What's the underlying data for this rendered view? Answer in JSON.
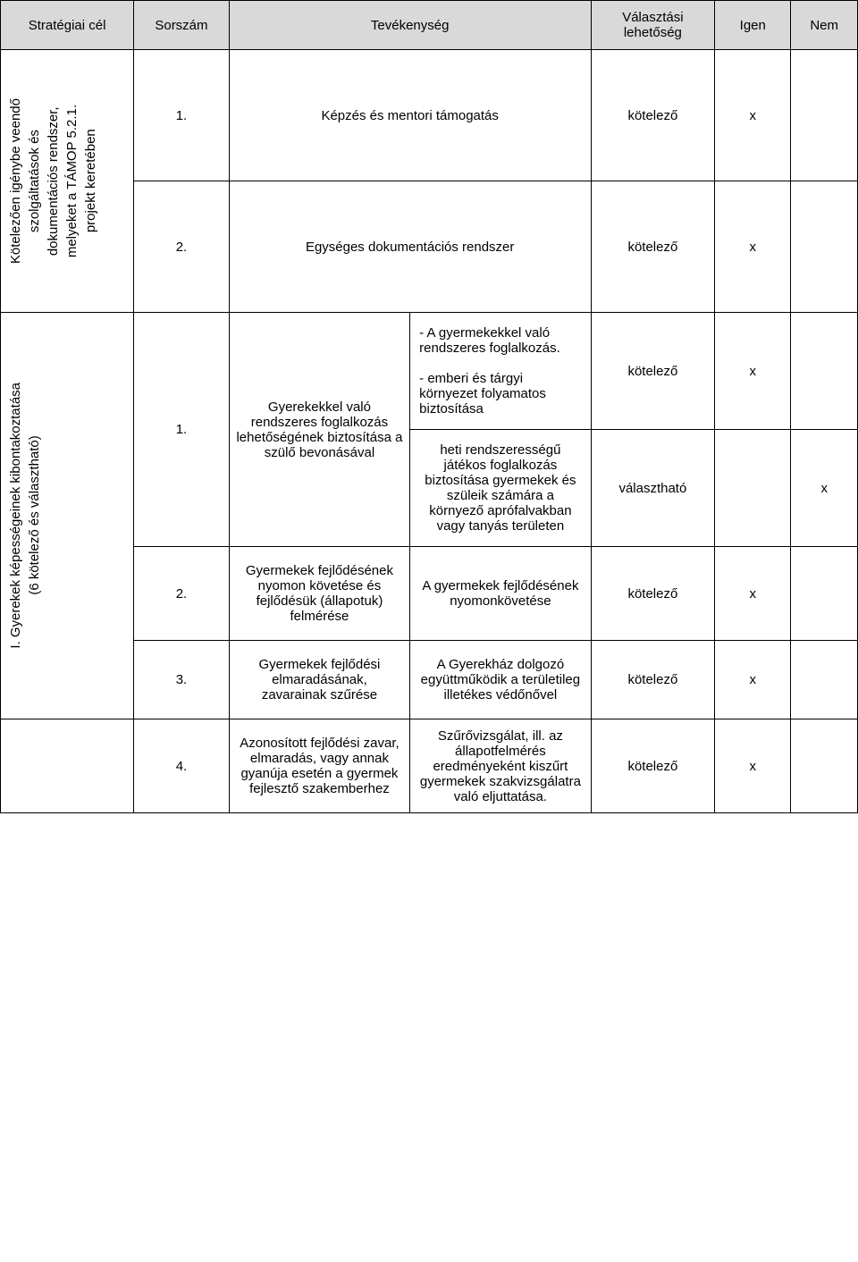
{
  "headers": {
    "h1": "Stratégiai cél",
    "h2": "Sorszám",
    "h3": "Tevékenység",
    "h4": "Választási lehetőség",
    "h5": "Igen",
    "h6": "Nem"
  },
  "options": {
    "mandatory": "kötelező",
    "optional": "választható",
    "x": "x"
  },
  "section1": {
    "goal": "Kötelezően igénybe veendő\nszolgáltatások és\ndokumentációs rendszer,\nmelyeket a TÁMOP 5.2.1.\nprojekt keretében",
    "r1_num": "1.",
    "r1_act": "Képzés és mentori támogatás",
    "r2_num": "2.",
    "r2_act": "Egységes dokumentációs rendszer"
  },
  "section2": {
    "goal": "I. Gyerekek képességeinek kibontakoztatása\n(6 kötelező és választható)",
    "r1_num": "1.",
    "r1_act_a": "Gyerekekkel való rendszeres foglalkozás lehetőségének biztosítása a szülő bevonásával",
    "r1_sub_a": "- A gyermekekkel való rendszeres foglalkozás.\n\n- emberi és tárgyi környezet folyamatos biztosítása",
    "r1_sub_b": "heti rendszerességű játékos foglalkozás biztosítása gyermekek és szüleik számára a környező aprófalvakban vagy tanyás területen",
    "r2_num": "2.",
    "r2_act": "Gyermekek fejlődésének nyomon követése és fejlődésük (állapotuk) felmérése",
    "r2_sub": "A gyermekek fejlődésének nyomonkövetése",
    "r3_num": "3.",
    "r3_act": "Gyermekek fejlődési elmaradásának, zavarainak szűrése",
    "r3_sub": "A Gyerekház dolgozó együttműködik a területileg illetékes védőnővel",
    "r4_num": "4.",
    "r4_act": "Azonosított fejlődési zavar, elmaradás, vagy annak gyanúja esetén a gyermek fejlesztő szakemberhez",
    "r4_sub": "Szűrővizsgálat, ill. az állapotfelmérés eredményeként kiszűrt gyermekek szakvizsgálatra való eljuttatása."
  }
}
